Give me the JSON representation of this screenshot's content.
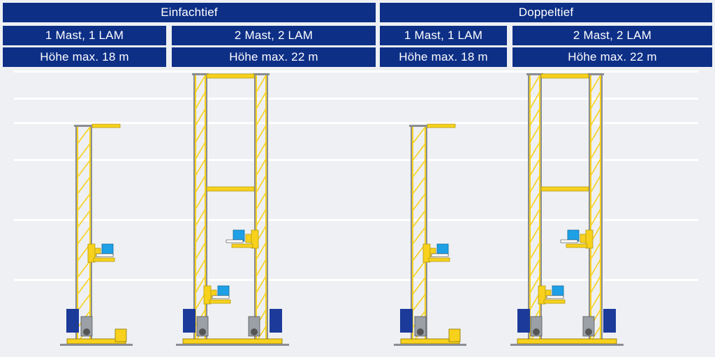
{
  "groups": [
    {
      "title": "Einfachtief",
      "variants": [
        {
          "masts": "1 Mast, 1 LAM",
          "height": "Höhe max. 18 m"
        },
        {
          "masts": "2 Mast, 2 LAM",
          "height": "Höhe max. 22 m"
        }
      ]
    },
    {
      "title": "Doppeltief",
      "variants": [
        {
          "masts": "1 Mast, 1 LAM",
          "height": "Höhe max. 18 m"
        },
        {
          "masts": "2 Mast, 2 LAM",
          "height": "Höhe max. 22 m"
        }
      ]
    }
  ],
  "colors": {
    "header_bg": "#0d2f86",
    "header_text": "#ffffff",
    "background": "#eef0f3",
    "mast_yellow": "#f7d11c",
    "mast_grey": "#8a8d93",
    "load_blue": "#1ea0e6",
    "motor_blue": "#1b3a9a"
  }
}
